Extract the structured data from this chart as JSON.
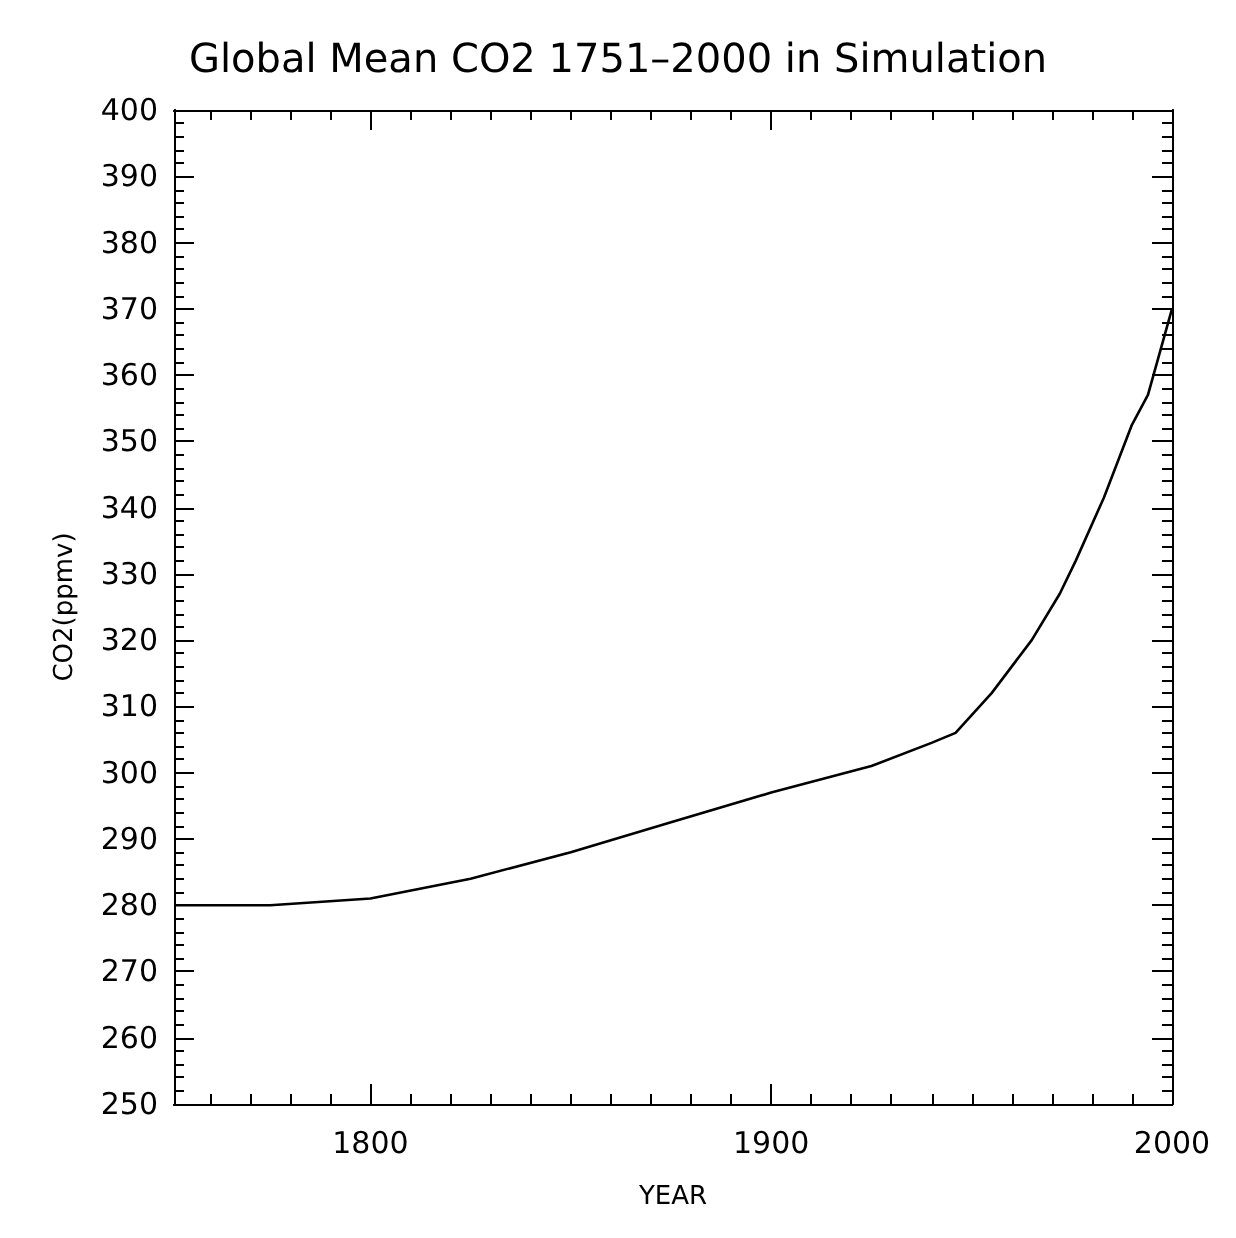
{
  "chart_data": {
    "type": "line",
    "title": "Global Mean CO2 1751–2000 in Simulation",
    "xlabel": "YEAR",
    "ylabel": "CO2(ppmv)",
    "x": [
      1751,
      1775,
      1800,
      1825,
      1850,
      1875,
      1900,
      1925,
      1940,
      1946,
      1955,
      1960,
      1965,
      1972,
      1976,
      1983,
      1990,
      1994,
      2000
    ],
    "series": [
      {
        "color": "#000000",
        "values": [
          280,
          280,
          281,
          284,
          288,
          292.5,
          297,
          301,
          304.5,
          306,
          312,
          316,
          320,
          327,
          332,
          341.5,
          352.5,
          357,
          370
        ]
      }
    ],
    "xlim": [
      1751,
      2000
    ],
    "xticks": [
      1800,
      1900,
      2000
    ],
    "ylim": [
      250,
      400
    ],
    "yticks": [
      250,
      260,
      270,
      280,
      290,
      300,
      310,
      320,
      330,
      340,
      350,
      360,
      370,
      380,
      390,
      400
    ],
    "grid": false,
    "marker": "none",
    "line_style": "solid"
  }
}
